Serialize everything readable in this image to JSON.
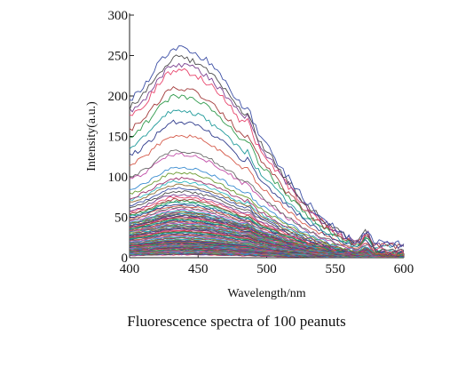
{
  "caption": "Fluorescence spectra of 100 peanuts",
  "chart_data": {
    "type": "line",
    "title": "",
    "xlabel": "Wavelength/nm",
    "ylabel": "Intensity(a.u.)",
    "xlim": [
      400,
      600
    ],
    "ylim": [
      0,
      300
    ],
    "x_ticks": [
      400,
      450,
      500,
      550,
      600
    ],
    "y_ticks": [
      0,
      50,
      100,
      150,
      200,
      250,
      300
    ],
    "x_tick_labels": [
      "400",
      "450",
      "500",
      "550",
      "600"
    ],
    "y_tick_labels": [
      "0",
      "50",
      "100",
      "150",
      "200",
      "250",
      "300"
    ],
    "grid": false,
    "legend": "none",
    "n_series": 100,
    "peak_wavelength": 435,
    "secondary_peaks": [
      487,
      573
    ],
    "series_colors": [
      "#3c4fa5",
      "#4d4d4d",
      "#7a3f8f",
      "#e8456d",
      "#a23a3a",
      "#2f9a4c",
      "#1f9a9a",
      "#2e3a8c",
      "#d55a4a",
      "#6b6b6b",
      "#c24fa8",
      "#3a8cd0",
      "#6a9a2f",
      "#9a2f6a",
      "#2fb8c0",
      "#8c6b2f"
    ],
    "series_peak_intensities": [
      260,
      248,
      240,
      232,
      210,
      200,
      182,
      168,
      152,
      132,
      128,
      112,
      105,
      98,
      94,
      90,
      86,
      82,
      78,
      75,
      72,
      70,
      68,
      66,
      64,
      62,
      60,
      58,
      57,
      56,
      55,
      54,
      53,
      52,
      51,
      50,
      49,
      48,
      47,
      46,
      45,
      44,
      43,
      42,
      41,
      40,
      39,
      38,
      37,
      36,
      35,
      34,
      33,
      32,
      31,
      30,
      29,
      28,
      27,
      26,
      25,
      24,
      23,
      22,
      21,
      20.5,
      20,
      19.5,
      19,
      18.5,
      18,
      17.5,
      17,
      16.5,
      16,
      15.5,
      15,
      14.5,
      14,
      13.5,
      13,
      12.5,
      12,
      11.5,
      11,
      10.5,
      10,
      9.5,
      9,
      8.5,
      8,
      7.5,
      7,
      6.5,
      6,
      5.5,
      5,
      4.5,
      4,
      3.5
    ]
  }
}
